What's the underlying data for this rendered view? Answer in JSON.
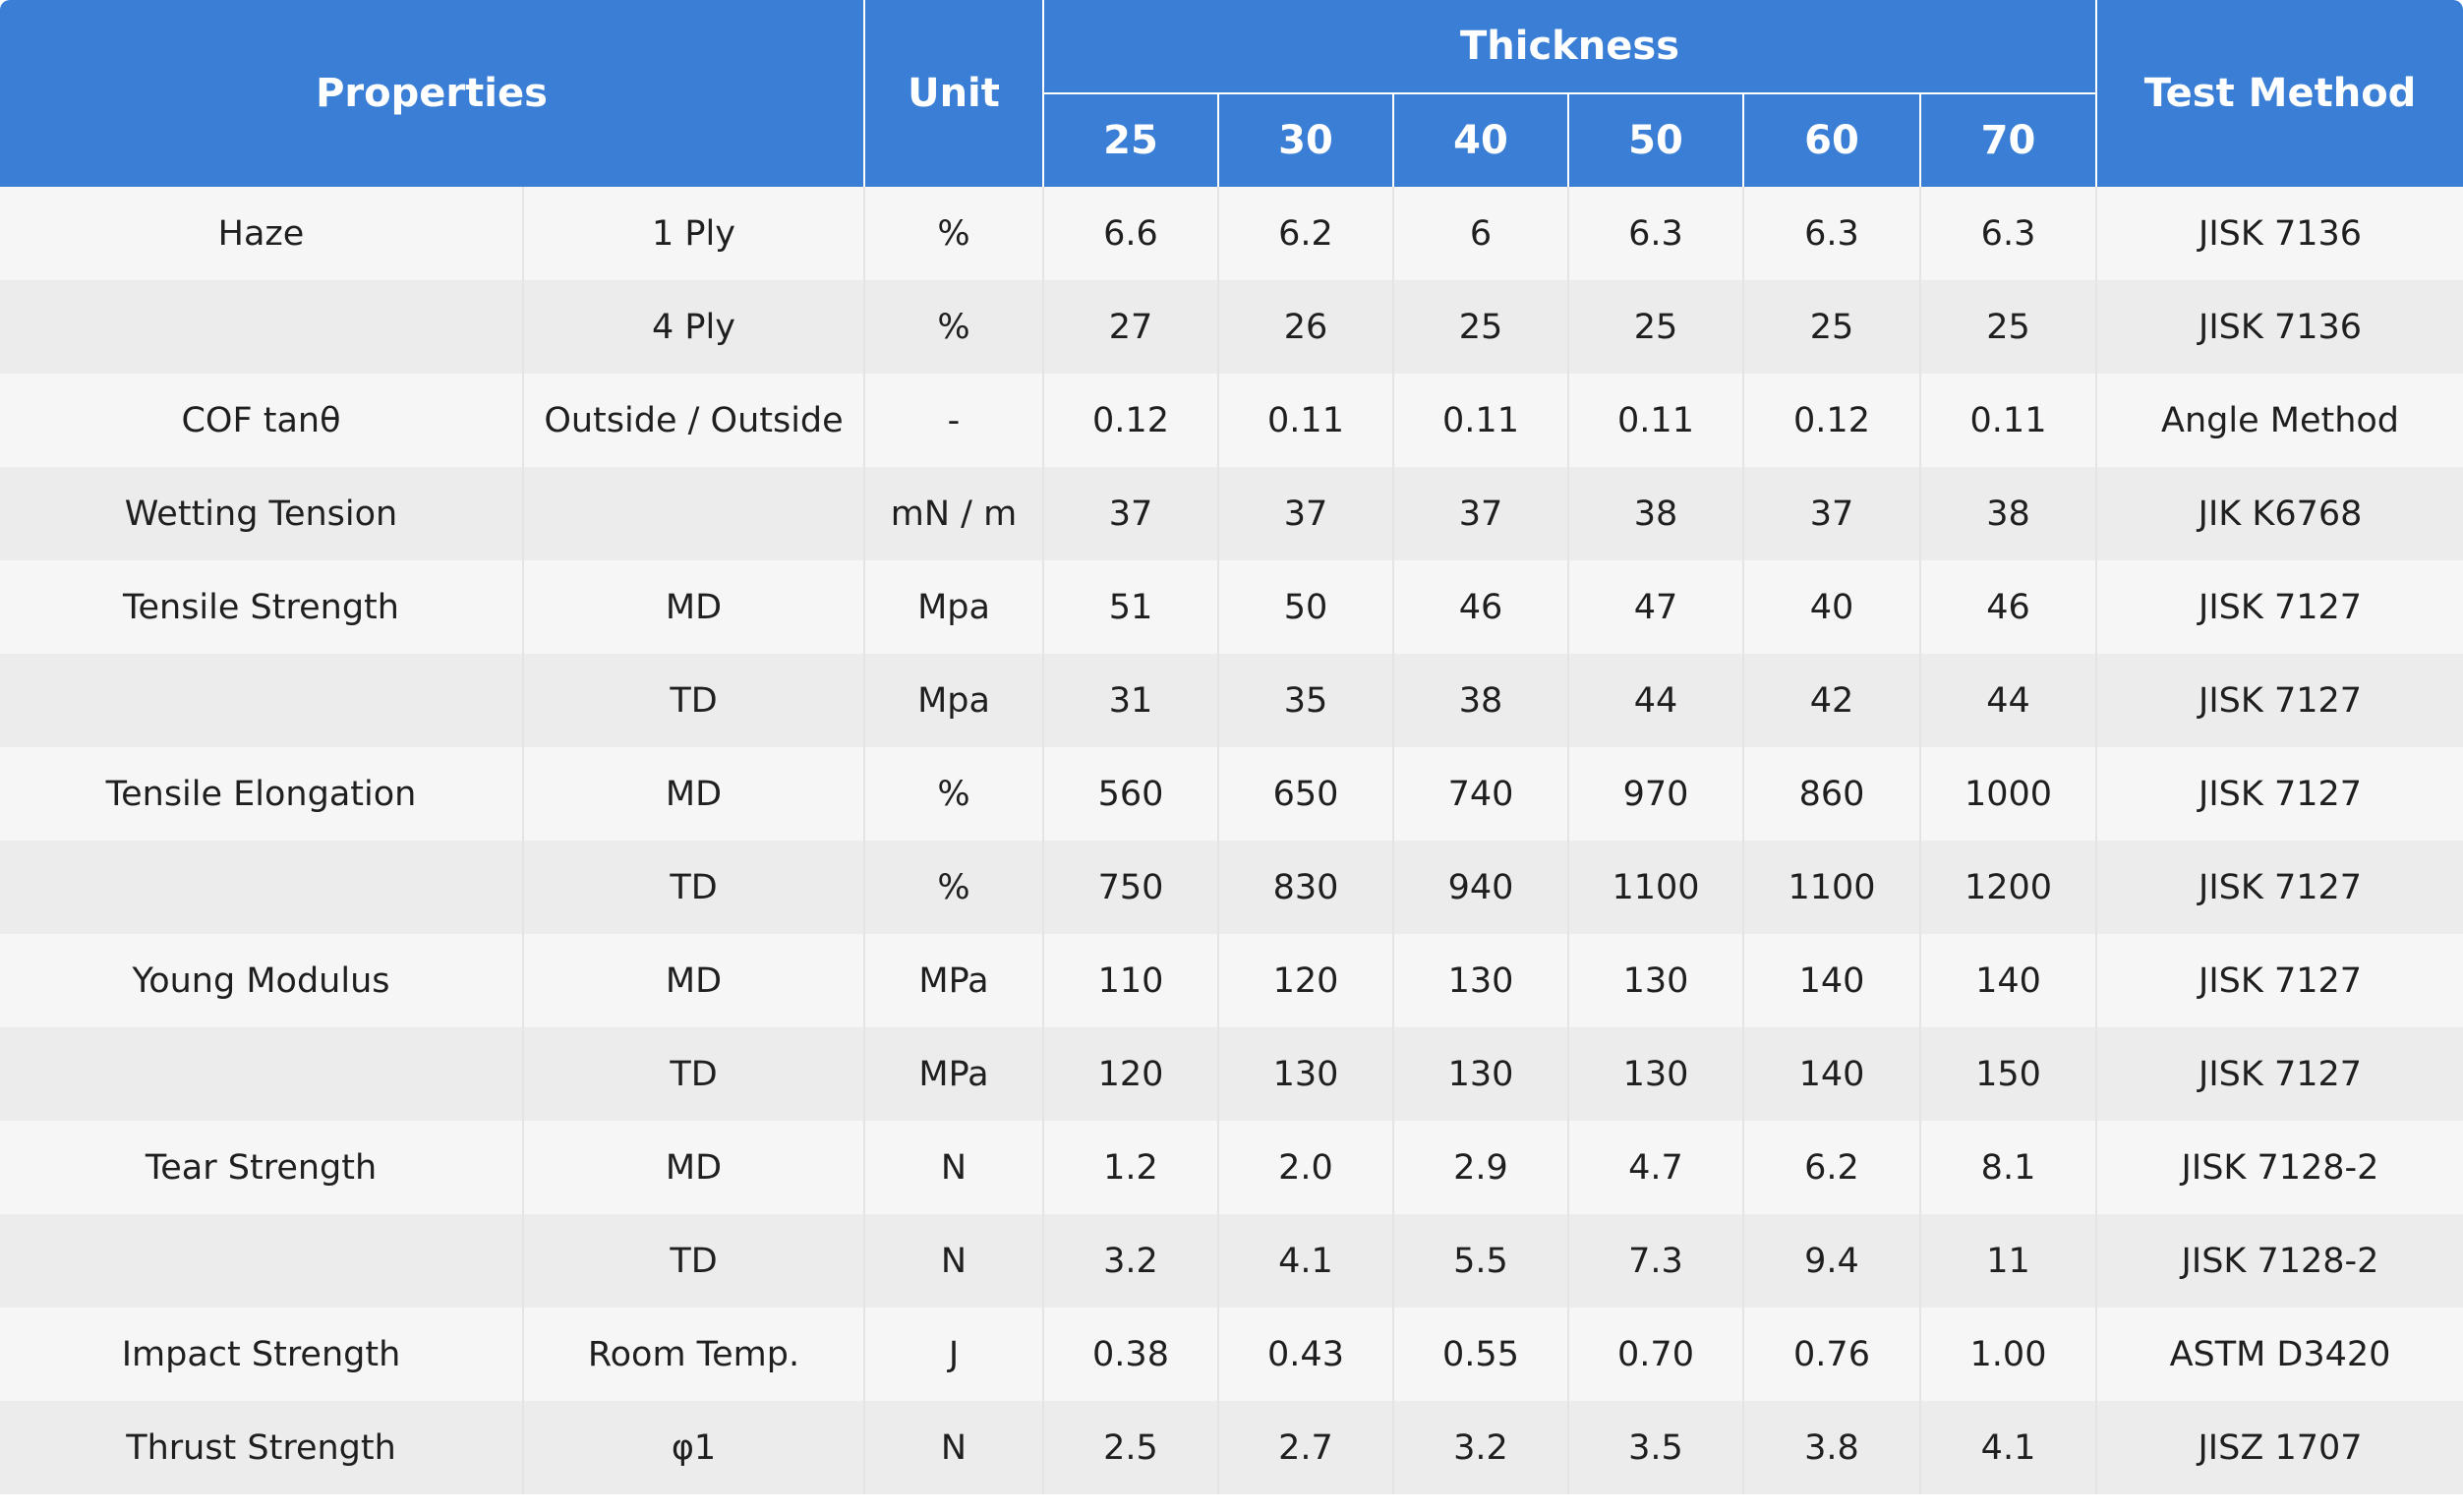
{
  "header": {
    "properties": "Properties",
    "unit": "Unit",
    "thickness": "Thickness",
    "test_method": "Test Method",
    "thickness_values": [
      "25",
      "30",
      "40",
      "50",
      "60",
      "70"
    ]
  },
  "rows": [
    {
      "property": "Haze",
      "condition": "1 Ply",
      "unit": "%",
      "values": [
        "6.6",
        "6.2",
        "6",
        "6.3",
        "6.3",
        "6.3"
      ],
      "method": "JISK 7136"
    },
    {
      "property": "",
      "condition": "4 Ply",
      "unit": "%",
      "values": [
        "27",
        "26",
        "25",
        "25",
        "25",
        "25"
      ],
      "method": "JISK 7136"
    },
    {
      "property": "COF tanθ",
      "condition": "Outside / Outside",
      "unit": "-",
      "values": [
        "0.12",
        "0.11",
        "0.11",
        "0.11",
        "0.12",
        "0.11"
      ],
      "method": "Angle Method"
    },
    {
      "property": "Wetting Tension",
      "condition": "",
      "unit": "mN / m",
      "values": [
        "37",
        "37",
        "37",
        "38",
        "37",
        "38"
      ],
      "method": "JIK K6768"
    },
    {
      "property": "Tensile Strength",
      "condition": "MD",
      "unit": "Mpa",
      "values": [
        "51",
        "50",
        "46",
        "47",
        "40",
        "46"
      ],
      "method": "JISK 7127"
    },
    {
      "property": "",
      "condition": "TD",
      "unit": "Mpa",
      "values": [
        "31",
        "35",
        "38",
        "44",
        "42",
        "44"
      ],
      "method": "JISK 7127"
    },
    {
      "property": "Tensile Elongation",
      "condition": "MD",
      "unit": "%",
      "values": [
        "560",
        "650",
        "740",
        "970",
        "860",
        "1000"
      ],
      "method": "JISK 7127"
    },
    {
      "property": "",
      "condition": "TD",
      "unit": "%",
      "values": [
        "750",
        "830",
        "940",
        "1100",
        "1100",
        "1200"
      ],
      "method": "JISK 7127"
    },
    {
      "property": "Young Modulus",
      "condition": "MD",
      "unit": "MPa",
      "values": [
        "110",
        "120",
        "130",
        "130",
        "140",
        "140"
      ],
      "method": "JISK 7127"
    },
    {
      "property": "",
      "condition": "TD",
      "unit": "MPa",
      "values": [
        "120",
        "130",
        "130",
        "130",
        "140",
        "150"
      ],
      "method": "JISK 7127"
    },
    {
      "property": "Tear Strength",
      "condition": "MD",
      "unit": "N",
      "values": [
        "1.2",
        "2.0",
        "2.9",
        "4.7",
        "6.2",
        "8.1"
      ],
      "method": "JISK 7128-2"
    },
    {
      "property": "",
      "condition": "TD",
      "unit": "N",
      "values": [
        "3.2",
        "4.1",
        "5.5",
        "7.3",
        "9.4",
        "11"
      ],
      "method": "JISK 7128-2"
    },
    {
      "property": "Impact Strength",
      "condition": "Room Temp.",
      "unit": "J",
      "values": [
        "0.38",
        "0.43",
        "0.55",
        "0.70",
        "0.76",
        "1.00"
      ],
      "method": "ASTM D3420"
    },
    {
      "property": "Thrust Strength",
      "condition": "φ1",
      "unit": "N",
      "values": [
        "2.5",
        "2.7",
        "3.2",
        "3.5",
        "3.8",
        "4.1"
      ],
      "method": "JISZ 1707"
    }
  ],
  "colors": {
    "header_bg": "#3a7fd5",
    "header_text": "#ffffff",
    "row_odd": "#f6f6f6",
    "row_even": "#ececec",
    "cell_text": "#1f1f1f"
  }
}
